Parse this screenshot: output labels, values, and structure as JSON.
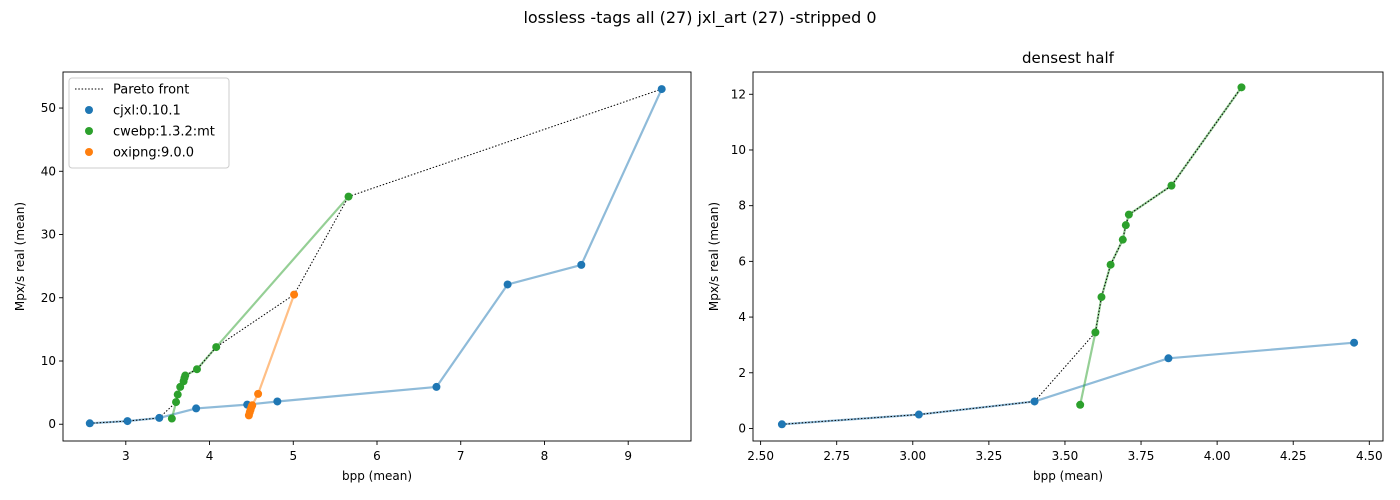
{
  "suptitle": "lossless -tags all (27) jxl_art (27) -stripped 0",
  "colors": {
    "cjxl": "#1f77b4",
    "cwebp": "#2ca02c",
    "oxipng": "#ff7f0e",
    "pareto": "#000000"
  },
  "chart_data": [
    {
      "type": "scatter",
      "title": "",
      "xlabel": "bpp (mean)",
      "ylabel": "Mpx/s real (mean)",
      "xlim": [
        2.25,
        9.75
      ],
      "ylim": [
        -2.65,
        55.7
      ],
      "xticks": [
        3,
        4,
        5,
        6,
        7,
        8,
        9
      ],
      "yticks": [
        0,
        10,
        20,
        30,
        40,
        50
      ],
      "grid": false,
      "legend": {
        "position": "top-left",
        "entries": [
          {
            "label": "Pareto front",
            "kind": "line"
          },
          {
            "label": "cjxl:0.10.1",
            "kind": "marker",
            "series": "cjxl"
          },
          {
            "label": "cwebp:1.3.2:mt",
            "kind": "marker",
            "series": "cwebp"
          },
          {
            "label": "oxipng:9.0.0",
            "kind": "marker",
            "series": "oxipng"
          }
        ]
      },
      "series": [
        {
          "key": "cjxl",
          "name": "cjxl:0.10.1",
          "x": [
            2.57,
            3.02,
            3.4,
            3.84,
            4.45,
            4.81,
            6.71,
            7.56,
            8.44,
            9.4
          ],
          "y": [
            0.15,
            0.5,
            1.0,
            2.5,
            3.1,
            3.6,
            5.9,
            22.1,
            25.2,
            53.0
          ]
        },
        {
          "key": "cwebp",
          "name": "cwebp:1.3.2:mt",
          "x": [
            3.55,
            3.6,
            3.62,
            3.65,
            3.69,
            3.7,
            3.71,
            3.85,
            4.08,
            5.66
          ],
          "y": [
            0.9,
            3.5,
            4.7,
            5.9,
            6.8,
            7.3,
            7.7,
            8.7,
            12.2,
            36.0
          ]
        },
        {
          "key": "oxipng",
          "name": "oxipng:9.0.0",
          "x": [
            4.47,
            4.48,
            4.49,
            4.5,
            4.51,
            4.58,
            5.01
          ],
          "y": [
            1.4,
            1.9,
            2.3,
            2.7,
            3.0,
            4.8,
            20.5
          ]
        }
      ],
      "pareto": {
        "x": [
          2.57,
          3.02,
          3.4,
          3.6,
          3.62,
          3.65,
          3.69,
          3.7,
          3.71,
          3.85,
          4.08,
          5.01,
          5.66,
          9.4
        ],
        "y": [
          0.15,
          0.5,
          1.0,
          3.5,
          4.7,
          5.9,
          6.8,
          7.3,
          7.7,
          8.7,
          12.2,
          20.5,
          36.0,
          53.0
        ]
      }
    },
    {
      "type": "scatter",
      "title": "densest half",
      "xlabel": "bpp (mean)",
      "ylabel": "Mpx/s real (mean)",
      "xlim": [
        2.475,
        4.545
      ],
      "ylim": [
        -0.45,
        12.8
      ],
      "xticks": [
        2.5,
        2.75,
        3.0,
        3.25,
        3.5,
        3.75,
        4.0,
        4.25,
        4.5
      ],
      "xtick_labels": [
        "2.50",
        "2.75",
        "3.00",
        "3.25",
        "3.50",
        "3.75",
        "4.00",
        "4.25",
        "4.50"
      ],
      "yticks": [
        0,
        2,
        4,
        6,
        8,
        10,
        12
      ],
      "grid": false,
      "series": [
        {
          "key": "cjxl",
          "name": "cjxl:0.10.1",
          "x": [
            2.57,
            3.02,
            3.4,
            3.84,
            4.45
          ],
          "y": [
            0.15,
            0.5,
            0.97,
            2.52,
            3.08
          ]
        },
        {
          "key": "cwebp",
          "name": "cwebp:1.3.2:mt",
          "x": [
            3.55,
            3.6,
            3.62,
            3.65,
            3.69,
            3.7,
            3.71,
            3.85,
            4.08
          ],
          "y": [
            0.85,
            3.45,
            4.72,
            5.88,
            6.78,
            7.3,
            7.68,
            8.72,
            12.25
          ]
        }
      ],
      "pareto": {
        "x": [
          2.57,
          3.02,
          3.4,
          3.6,
          3.62,
          3.65,
          3.69,
          3.7,
          3.71,
          3.85,
          4.08
        ],
        "y": [
          0.15,
          0.5,
          0.97,
          3.45,
          4.72,
          5.88,
          6.78,
          7.3,
          7.68,
          8.72,
          12.25
        ]
      }
    }
  ]
}
